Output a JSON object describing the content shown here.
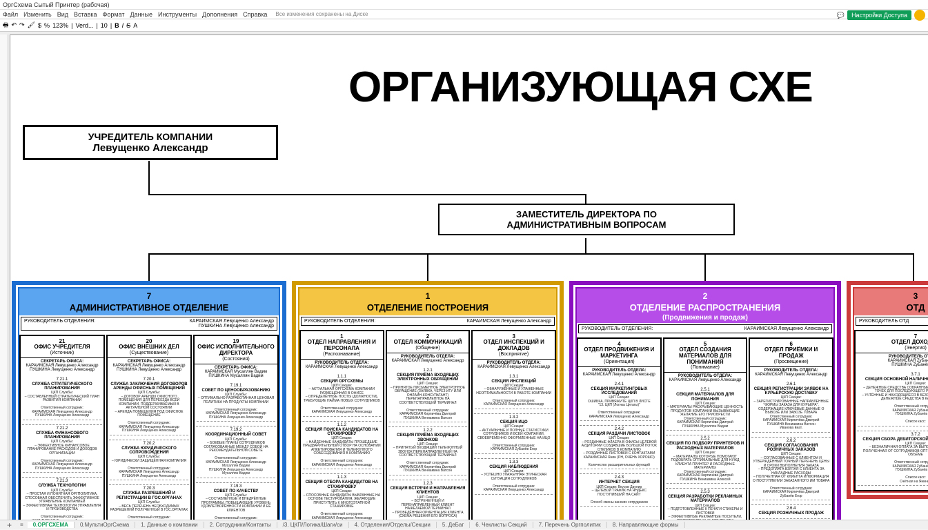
{
  "app": {
    "docname": "ОргСхема Сытый Принтер (рабочая)"
  },
  "menu": {
    "items": [
      "Файл",
      "Изменить",
      "Вид",
      "Вставка",
      "Формат",
      "Данные",
      "Инструменты",
      "Дополнения",
      "Справка"
    ],
    "saved": "Все изменения сохранены на Диске"
  },
  "toolbar": {
    "zoom": "123%",
    "font": "Verd...",
    "size": "10",
    "share": "Настройки Доступа"
  },
  "title": "ОРГАНИЗУЮЩАЯ СХЕ",
  "founder": {
    "label": "УЧРЕДИТЕЛЬ КОМПАНИИ",
    "name": "Левущенко Александр"
  },
  "deputy": {
    "l1": "ЗАМЕСТИТЕЛЬ ДИРЕКТОРА ПО",
    "l2": "АДМИНИСТРАТИВНЫМ ВОПРОСАМ"
  },
  "divisions": [
    {
      "num": "7",
      "name": "АДМИНИСТРАТИВНОЕ ОТДЕЛЕНИЕ",
      "sub": "",
      "head_label": "РУКОВОДИТЕЛЬ ОТДЕЛЕНИЯ:",
      "head_name": "КАРАИМСКАЯ  Левущенко Александр\nПУШКИНА  Левущенко Александр",
      "depts": [
        {
          "num": "21",
          "name": "ОФИС УЧРЕДИТЕЛЯ",
          "sub": "(Источник)",
          "head_lbl": "СЕКРЕТАРЬ ОФИСА:",
          "head_val": "КАРАИМСКАЯ  Левущенко Александр\nПУШКИНА  Левущенко Александр",
          "sections": [
            {
              "num": "7.21.1",
              "name": "СЛУЖБА СТРАТЕГИЧЕСКОГО ПЛАНИРОВАНИЯ",
              "body": "ЦКП Службы:\n– СОСТАВЛЕННЫЙ СТРАТЕГИЧЕСКИЙ ПЛАН РАЗВИТИЯ КОМПАНИИ\n\nОтветственный сотрудник:\nКАРАИМСКАЯ  Левущенко Александр\nПУШКИНА  Левущенко Александр"
            },
            {
              "num": "7.21.2",
              "name": "СЛУЖБА ФИНАНСОВОГО ПЛАНИРОВАНИЯ",
              "body": "ЦКП Службы:\n– ЭФФЕКТИВНОЕ ФИНАНСОВОЕ ПЛАНИРОВАНИЕ РАСХОДОВ И ДОХОДОВ ОРГАНИЗАЦИИ\n\nОтветственный сотрудник:\nКАРАИМСКАЯ  Левущенко Александр\nПУШКИНА  Левущенко Александр"
            },
            {
              "num": "7.21.3",
              "name": "СЛУЖБА ТЕХНОЛОГИИ",
              "body": "ЦКП Службы:\n– ПРОСТАЯ И ПОНЯТНАЯ ОРГПОЛИТИКА, СПОСОБНАЯ ОБЕСПЕЧИТЬ ЭФФЕКТИВНОЕ УПРАВЛЕНИЕ КОМПАНИЕЙ\n– ЭФФЕКТИВНАЯ ТЕХНОЛОГИЯ УПРАВЛЕНИЯ И ПРОИЗВОДСТВА\n\nОтветственный сотрудник:\nКАРАИМСКАЯ  Левущенко Александр\nПУШКИНА  Левущенко Александр"
            }
          ]
        },
        {
          "num": "20",
          "name": "ОФИС ВНЕШНИХ ДЕЛ",
          "sub": "(Существование)",
          "head_lbl": "СЕКРЕТАРЬ ОФИСА:",
          "head_val": "КАРАИМСКАЯ  Левущенко Александр\nПУШКИНА  Левущенко Александр",
          "sections": [
            {
              "num": "7.20.1",
              "name": "СЛУЖБА ЗАКЛЮЧЕНИЯ ДОГОВОРОВ АРЕНДЫ ОФИСНЫХ ПОМЕЩЕНИЙ",
              "body": "ЦКП Службы:\n– ДОГОВОР АРЕНДЫ ОФИСНОГО ПОМЕЩЕНИЯ ДЛЯ ПЕРЕЕЗДА ВСЕЙ КОМПАНИИ, ПОДДЕРЖИВАЕМЫЙ В АКТУАЛЬНОМ СОСТОЯНИИ\n– АРЕНДА ПОМЕЩЕНИЯ ПОД ОФИСНОЕ ПОМЕЩЕНИЕ\n\nОтветственный сотрудник:\nКАРАИМСКАЯ  Левущенко Александр\nПУШКИНА  Левущенко Александр"
            },
            {
              "num": "7.20.2",
              "name": "СЛУЖБА ЮРИДИЧЕСКОГО СОПРОВОЖДЕНИЯ",
              "body": "ЦКП Службы:\n– ЮРИДИЧЕСКИ ЗАЩИЩЁННАЯ КОМПАНИЯ\n\nОтветственный сотрудник:\nКАРАИМСКАЯ  Левущенко Александр\nПУШКИНА  Левущенко Александр"
            },
            {
              "num": "7.20.3",
              "name": "СЛУЖБА РАЗРЕШЕНИЙ И РЕГИСТРАЦИИ В ГОС.ОРГАНАХ",
              "body": "ЦКП Службы:\n– ВЕСЬ ПЕРЕЧЕНЬ НЕОБХОДИМЫХ РАЗРЕШЕНИЙ ПОЛУЧЕННЫЙ В ГОС.ОРГАНАХ\n\nОтветственный сотрудник:\nКАРАИМСКАЯ  Левущенко Александр\nПУШКИНА  Левущенко Александр"
            }
          ]
        },
        {
          "num": "19",
          "name": "ОФИС ИСПОЛНИТЕЛЬНОГО ДИРЕКТОРА",
          "sub": "(Состояния)",
          "head_lbl": "СЕКРЕТАРЬ ОФИСА:",
          "head_val": "КАРАИМСКАЯ  Мусаллян Вадим\nПУШКИНА  Мусаллян Вадим",
          "sections": [
            {
              "num": "7.19.1",
              "name": "СОВЕТ ПО ЦЕНООБРАЗОВАНИЮ",
              "body": "ЦКП Службы:\n– ОПТИМАЛЬНО РАЗРАБОТАННАЯ ЦЕНОВАЯ ПОЛИТИКА НА ПРОДУКТЫ КОМПАНИИ\n\nОтветственный сотрудник:\nКАРАИМСКАЯ  Левущенко Александр\nПУШКИНА  Левущенко Александр"
            },
            {
              "num": "7.19.2",
              "name": "КООРДИНАЦИОННЫЙ СОВЕТ",
              "body": "ЦКП Службы:\n– БОЕВЫЕ ПЛАНЫ СОТРУДНИКОВ СОГЛАСОВАННЫЕ МЕЖДУ СОБОЙ НА РЕКОМЕНДАТЕЛЬНОМ СОВЕТЕ\n\nОтветственный сотрудник:\nКАРАИМСКАЯ  Левущенко Александр\nМусаллян Вадим\nПУШКИНА  Левущенко Александр\nМусаллян Вадим"
            },
            {
              "num": "7.19.3",
              "name": "СОВЕТ ПО КАЧЕСТВУ",
              "body": "ЦКП Службы:\n– СОСТАВЛЕННЫЕ И ВНЕДРЁННЫЕ ПРОГРАММЫ, ПОВЫШАЮЩИЕ УРОВЕНЬ УДОВЛЕТВОРЁННОСТИ КОМПАНИИ И ЕЁ КЛИЕНТОВ\n\nОтветственный сотрудник:\nКАРАИМСКАЯ  Левущенко Александр"
            }
          ]
        }
      ]
    },
    {
      "num": "1",
      "name": "ОТДЕЛЕНИЕ ПОСТРОЕНИЯ",
      "sub": "",
      "head_label": "РУКОВОДИТЕЛЬ ОТДЕЛЕНИЯ:",
      "head_name": "КАРАИМСКАЯ  Левущенко Александр",
      "depts": [
        {
          "num": "1",
          "name": "ОТДЕЛ НАПРАВЛЕНИЯ И ПЕРСОНАЛА",
          "sub": "(Распознавание)",
          "head_lbl": "РУКОВОДИТЕЛЬ ОТДЕЛА:",
          "head_val": "КАРАИМСКАЯ  Левущенко Александр",
          "sections": [
            {
              "num": "1.1.1",
              "name": "СЕКЦИЯ ОРГСХЕМЫ",
              "body": "ЦКП Секции:\n– АКТУАЛЬНАЯ ОРГСХЕМА КОМПАНИИ РАЗМЕЩЁННАЯ В ОФИСЕ\n– ОПРЕДЕЛЁННЫЕ ПОСТЫ (ДОЛЖНОСТИ), ТРЕБУЮЩИЕ НАЙМА НОВЫХ СОТРУДНИКОВ\n\nОтветственный сотрудник:\nКАРАИМСКАЯ  Левущенко Александр"
            },
            {
              "num": "1.1.2",
              "name": "СЕКЦИЯ ПОИСКА КАНДИДАТОВ НА СТАЖИРОВКУ",
              "body": "ЦКП Секции:\n– НАЙДЕННЫЕ КАНДИДАТЫ ПРОШЕДШИЕ ПРЕДВАРИТЕЛЬНЫЙ ОТБОР НА ОСНОВАНИИ АНКЕТИРОВАНИЯ И ТЕЛЕФОННОГО СОБЕСЕДОВАНИЯ В КОМПАНИЮ\n\nОтветственный сотрудник:\nКАРАИМСКАЯ  Левущенко Александр"
            },
            {
              "num": "1.1.3",
              "name": "СЕКЦИЯ ОТБОРА КАНДИДАТОВ НА СТАЖИРОВКУ",
              "body": "ЦКП Секции:\n– СПОСОБНЫЕ КАНДИДАТЫ ВЫБРАННЫЕ НА ОСНОВЕ ТЕСТИРОВАНИЯ, ЖЕЛАЮЩИЕ ПРИСТУПИТЬ К МНОГОЭТАПНОЙ СТАЖИРОВКЕ\n\nОтветственный сотрудник:\nКАРАИМСКАЯ  Левущенко Александр"
            }
          ]
        },
        {
          "num": "2",
          "name": "ОТДЕЛ КОММУНИКАЦИЙ",
          "sub": "(Общение)",
          "head_lbl": "РУКОВОДИТЕЛЬ ОТДЕЛА:",
          "head_val": "КАРАИМСКАЯ  Левущенко Александр",
          "sections": [
            {
              "num": "1.2.1",
              "name": "СЕКЦИЯ ПРИЁМА ВХОДЯЩИХ ЭЛЕКТРОННЫХ ОБРАЩЕНИЙ",
              "body": "ЦКП Секции:\n– ПРИНЯТОЕ ПИСЬМЕННОЕ ЭЛЕКТРОННОЕ ОБРАЩЕНИЕ (ЗАЯВКА, ЧЕРЕЗ ИГУ ИЛИ ОНЛАЙН-КОНСУЛЬТАНТ) ПЕРЕНАПРАВЛЕННОЕ НА СООТВЕТСТВУЮЩИЙ ТЕРМИНАЛ\n\nОтветственный сотрудник:\nКАРАИМСКАЯ  Кирпичёва Дмитрий\nПУШКИНА  Вениамина Ватсон"
            },
            {
              "num": "1.2.2",
              "name": "СЕКЦИЯ ПРИЁМА ВХОДЯЩИХ ЗВОНКОВ",
              "body": "ЦКП Секции:\n– ПРИНЯТЫЙ ВХОДЯЩИЙ ТЕЛЕФОННЫЙ ЗВОНОК ПЕРЕНАПРАВЛЕННЫЙ НА СООТВЕТСТВУЮЩИЙ ТЕРМИНАЛ\n\nОтветственный сотрудник:\nКАРАИМСКАЯ  Кирпичёва Дмитрий\nПУШКИНА  Вениамина Ватсон"
            },
            {
              "num": "1.2.3",
              "name": "СЕКЦИЯ ВСТРЕЧИ И НАПРАВЛЕНИЯ КЛИЕНТОВ",
              "body": "ЦКП Секции:\n– ВСТРЕЧЕННЫЙ И\nПЕРЕНАПРАВЛЕННЫЙ КЛИЕНТ НАЖЕЛАЕМОЙ ТЕРМИНАЛ\n– ПРОВЕДЁННАЯ ОРИЕНТАЦИЯ КЛИЕНТА (СХЕМА РЕШЕНИЯ ЕГО ВОПРОСА)"
            }
          ]
        },
        {
          "num": "3",
          "name": "ОТДЕЛ ИНСПЕКЦИЙ И ДОКЛАДОВ",
          "sub": "(Восприятие)",
          "head_lbl": "РУКОВОДИТЕЛЬ ОТДЕЛА:",
          "head_val": "КАРАИМСКАЯ  Левущенко Александр",
          "sections": [
            {
              "num": "1.3.1",
              "name": "СЕКЦИЯ ИНСПЕКЦИЙ",
              "body": "ЦКП Секции:\n– ОБНАРУЖЕННЫЕ И УЛАЖЕННЫЕ НЕОПТИМАЛЬНОСТИ В РАБОТЕ КОМПАНИИ\n\nОтветственный сотрудник:\nКАРАИМСКАЯ  Левущенко Александр"
            },
            {
              "num": "1.3.2",
              "name": "СЕКЦИЯ ИЦО",
              "body": "ЦКП Секции:\n– АКТУАЛЬНЫЕ И ПОЛНЫЕ СТАТИСТИКИ СОТРУДНИКОВ И ВСЕЙ КОМПАНИИ, СВОЕВРЕМЕННО ОФОРМЛЕННЫЕ НА ИЦО\n\nОтветственный сотрудник:\nКАРАИМСКАЯ  ZyБaнёв Егор"
            },
            {
              "num": "1.3.3",
              "name": "СЕКЦИЯ НАБЛЮДЕНИЯ",
              "body": "ЦКП Секции:\n– УСПЕШНО УЛАЖЕННАЯ ЭТИЧЕСКАЯ СИТУАЦИЯ СОТРУДНИКОВ\n\nОтветственный сотрудник:\nКАРАИМСКАЯ  Левущенко Александр"
            }
          ]
        }
      ]
    },
    {
      "num": "2",
      "name": "ОТДЕЛЕНИЕ РАСПРОСТРАНЕНИЯ",
      "sub": "(Продвижения и продаж)",
      "head_label": "РУКОВОДИТЕЛЬ ОТДЕЛЕНИЯ:",
      "head_name": "КАРАИМСКАЯ  Левущенко Александр",
      "depts": [
        {
          "num": "4",
          "name": "ОТДЕЛ ПРОДВИЖЕНИЯ И МАРКЕТИНГА",
          "sub": "(Ориентация)",
          "head_lbl": "РУКОВОДИТЕЛЬ ОТДЕЛА:",
          "head_val": "КАРАИМСКАЯ  Левущенко Александр",
          "sections": [
            {
              "num": "2.4.1",
              "name": "СЕКЦИЯ МАРКЕТИНГОВЫХ ИССЛЕДОВАНИЙ",
              "body": "ЦКП Секции:\nОШИБКА. ПРИВЯЖИТЕ ЦКП В ЛИСТЕ\n\"13. ЦКП (Логика Цитаты)\"\n\nОтветственный сотрудник:\nКАРАИМСКАЯ  Левущенко Александр"
            },
            {
              "num": "2.4.2",
              "name": "СЕКЦИЯ РАЗДАЧИ ЛИСТОВОК",
              "body": "ЦКП Секции:\n– РОЗДАННЫЕ ФЛАЕРА В ОФИСЫ ЦЕЛЕВОЙ АУДИТОРИИ СОЗДАВШИЕ БОЛЬШОЙ ПОТОК ОТКЛИКОВ В КОМПАНИЮ\n– РОЗДАННЫЕ ЛИСТОВКИ С КОНТАКТАМИ КАРАИМСКАЯ  Янин  (РН, ОЧЕНЬ ХОРОШО)\n\nКоличество расширительных функций"
            },
            {
              "num": "2.4.3",
              "name": "ИНТЕРНЕТ СЕКЦИЯ",
              "body": "ЦКП Секции: Вкусов Даулир\n– ЦЕЛЕВОЙ ТРАФИК НА ЯНДЕКС ПОСТУПИВШИЙ НА САЙТ\n\nСпособ смены канских сотрудников"
            }
          ]
        },
        {
          "num": "5",
          "name": "ОТДЕЛ СОЗДАНИЯ МАТЕРИАЛОВ ДЛЯ ПОНИМАНИЯ",
          "sub": "(Понимание)",
          "head_lbl": "РУКОВОДИТЕЛЬ ОТДЕЛА:",
          "head_val": "КАРАИМСКАЯ  Левущенко Александр",
          "sections": [
            {
              "num": "2.5.1",
              "name": "СЕКЦИЯ МАТЕРИАЛОВ ДЛЯ ПОНИМАНИЯ",
              "body": "ЦКП Секции:\n– МАТЕРИАЛЫ РАСКРЫВАЮЩИЕ ЦЕННОСТЬ ПРОДУКТОВ КОМПАНИИ ВЫЗЫВАЮЩИЕ ЖЕЛАНИЕ ЕГО ПРИОБРЕСТИ\nОтветственный сотрудник:\nКАРАИМСКАЯ  Кирпичёва Дмитрий\nПУШКИНА  Мусаллян Вадим"
            },
            {
              "num": "2.5.2",
              "name": "СЕКЦИЯ ПО ПОДБОРУ ПРИНТЕРОВ И РАСХОДНЫХ МАТЕРИАЛОВ",
              "body": "ЦКП Секции:\n– МАТЕРИАЛЫ КОТОРЫЕ ПОМОГАЮТ ПОДОБРАТЬ ОПТИМАЛЬНЫЕ ДЛЯ НУЖД КЛИЕНТА ПРИНТЕР И РАСХОДНЫЕ МАТЕРИАЛЫ\nОтветственный сотрудник:\nКАРАИМСКАЯ  Кирпичёва Дмитрий\nПУШКИНА  Вениамина Алексей"
            },
            {
              "num": "2.5.3",
              "name": "СЕКЦИЯ РАЗРАБОТКИ РЕКЛАМНЫХ МАТЕРИАЛОВ",
              "body": "ЦКП Секции:\n– ПОДГОТОВЛЕННЫЕ К ПЕЧАТИ СТИКЕРЫ И ЛИСТОВКИ\n– ЭФФЕКТИВНЫЕ РЕКЛАМНЫЕ НОСИТЕЛИ, ПОДГОТОВЛЕННЫЕ ДЛЯ ПЕЧАТИ\n\nОтветственный сотрудник:\nКАРАИМСКАЯ  Левущенко Александр"
            }
          ]
        },
        {
          "num": "6",
          "name": "ОТДЕЛ ПРИЁМКИ И ПРОДАЖ",
          "sub": "(Просвещение)",
          "head_lbl": "РУКОВОДИТЕЛЬ ОТДЕЛА:",
          "head_val": "КАРАИМСКАЯ  Левущенко Александр",
          "sections": [
            {
              "num": "2.6.1",
              "name": "СЕКЦИЯ РЕГИСТРАЦИИ ЗАЯВОК НА КУРЬЕРСКУЮ ДОСТАВКУ",
              "body": "ЦКП Секции:\n– ЗАРЕГИСТРИРОВАННЫЕ НАПРАВЛЕННЫЕ \"ФОРМЫ ЗАКАЗА ДЛЯ КУРЬЕРА\", СОДЕРЖАЩИЕ КЛЮЧЕВЫЕ ДАННЫЕ О ВЫВОЗЕ ИЛИ ЗАВОЗЕ ТОВАРА\nОтветственный сотрудник:\nКАРАИМСКАЯ  Кирпичёва Дмитрий\nПУШКИНА  Вениамина Ватсон\nИванова Екат."
            },
            {
              "num": "2.6.2",
              "name": "СЕКЦИЯ СОГЛАСОВАНИЯ РОЗНИЧНЫХ ЗАКАЗОВ",
              "body": "ЦКП Секции:\n– СОГЛАСОВАННЫЕ С КЛИЕНТОМ И УТВЕРЖДЁННЫЙ ТОЧНЫЙ ПЕРЕЧЕНЬ ЦЕНЫ И СРОКИ ВЫПОЛНЕНИЯ ЗАКАЗА\n– ПРЕДОПЛАТА ВЗЯТАЯ С КЛИЕНТА ЗА НАКЛАДНЫЕ РАСХОДЫ\n– ПОЛУЧЕННАЯ ОТ КЛИЕНТА ИНФОРМАЦИЯ О ПОСТУПЛЕНИИ ЗАКАЗАННОГО ИМ ТОВАРА\n\nОтветственный сотрудник:\nКАРАИМСКАЯ  Кирпичёва Дмитрий\nZyБaнёв Егор"
            },
            {
              "num": "2.6.4",
              "name": "СЕКЦИЯ РОЗНИЧНЫХ ПРОДАЖ",
              "body": ""
            }
          ]
        }
      ]
    },
    {
      "num": "3",
      "name": "ОТД",
      "sub": "",
      "head_label": "РУКОВОДИТЕЛЬ ОТД",
      "head_name": "",
      "depts": [
        {
          "num": "7",
          "name": "ОТДЕЛ ДОХОДОВ",
          "sub": "(Энергия)",
          "head_lbl": "РУКОВОДИТЕЛЬ ОТДЕЛА:",
          "head_val": "КАРАИМСКАЯ  ZyБaнёв Егор\nПУШКИНА  ZyБaнёв Егор",
          "sections": [
            {
              "num": "3.7.1",
              "name": "СЕКЦИЯ ОСНОВНОЙ НАЛИЧНОЙ КАССЫ (СЕЙФ)",
              "body": "ЦКП Секции:\n– ДЕНЕЖНЫЕ СРЕДСТВА СОБРАННЫЕ ИЗ ВСЕХ РОЗНИЧНЫХ ТОЧЕК ДЛЯ ПОСЛЕДУЮЩЕГО РАСПРЕДЕЛЕНИЯ\n– УЧТЁННЫЕ И НАХОДЯЩИЕСЯ В БЕЗОПАСНОСТИ НАЛИЧНЫЕ ДЕНЕЖНЫЕ СРЕДСТВА В КАССЕ ''СЕЙФ''\n\nОтветственный сотрудник:\nКАРАИМСКАЯ  ZyБaнёв Егор\nПУШКИНА  ZyБaнёв Егор\n\nСписок касс:"
            },
            {
              "num": "3.7.2",
              "name": "СЕКЦИЯ СБОРА ДЕБИТОРСКОЙ ЗАДОЛЖЕННОСТИ",
              "body": "ЦКП Секции:\n– БЕЗНАЛИЧНАЯ ОПЛАТА ЗА ВЫПОЛНЕННЫЕ РАБОТЫ ПОЛУЧЕННАЯ ОТ СОТРУДНИКОВ ОПТ КОМПАНИИ В ПОЛНОМ ОБЪЁМЕ\n\nОтветственный сотрудник:\nКАРАИМСКАЯ  ZyБaнёв Егор\nПУШКИНА  ZyБaнёв Егор\n\nСписок касс:\nСчётная на Яниных"
            }
          ]
        }
      ]
    }
  ],
  "tabs": {
    "items": [
      "0.ОРГСХЕМА",
      "0.МультиОргСхема",
      "1. Данные о компании",
      "2. Сотрудники/Контакты",
      "/3. ЦКП/Логика/Шаги/си",
      "4. Отделения/Отделы/Секции",
      "5. ДеБаг",
      "6. Чеклисты Секций",
      "7. Перечень Оргполитик",
      "8. Направляющие формы"
    ],
    "active": 0
  }
}
